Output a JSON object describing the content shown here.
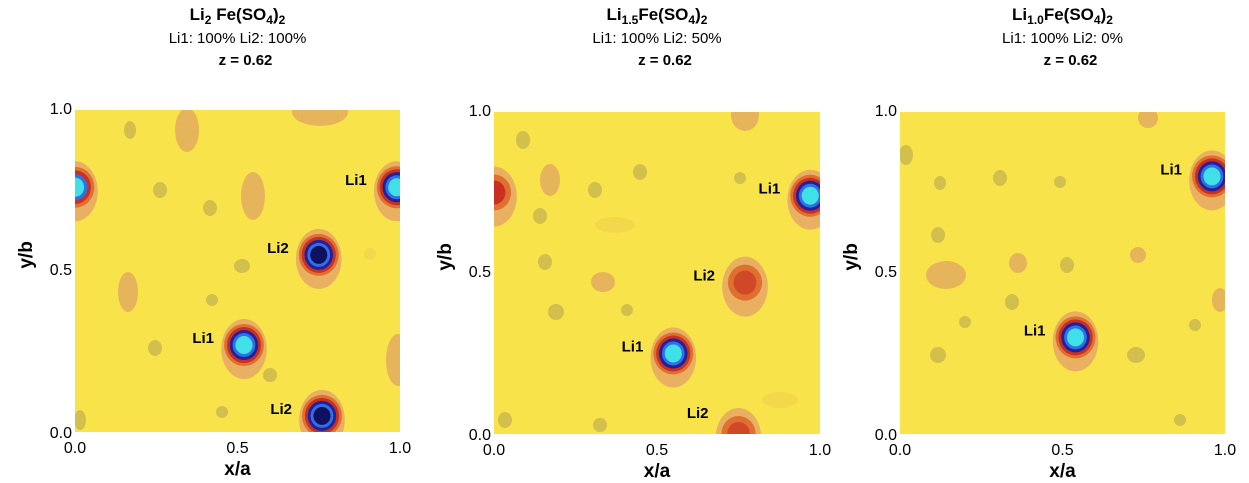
{
  "chart_data": [
    {
      "type": "contour",
      "title": [
        "Li",
        "2",
        " Fe(SO",
        "4",
        ")",
        "2"
      ],
      "subtitle": "Li1: 100% Li2: 100%",
      "annotation": "z = 0.62",
      "xlabel": "x/a",
      "ylabel": "y/b",
      "xlim": [
        0,
        1
      ],
      "ylim": [
        0,
        1
      ],
      "xticks": [
        {
          "value": 0,
          "label": "0.0"
        },
        0.5,
        {
          "value": 1,
          "label": "1.0"
        }
      ],
      "yticks": [
        {
          "value": 0,
          "label": "0.0"
        },
        0.5,
        {
          "value": 1,
          "label": "1.0"
        }
      ],
      "background": "#f8e44a",
      "sites": [
        {
          "label": "Li1",
          "x": 0.99,
          "y": 0.76,
          "colors": [
            "#e8b060",
            "#e07030",
            "#c83020",
            "#2020a0",
            "#3070e0",
            "#40e0e8"
          ]
        },
        {
          "label": null,
          "x": 0.0,
          "y": 0.76,
          "colors": [
            "#e8b060",
            "#e07030",
            "#c83020",
            "#3070e0",
            "#40e0e8"
          ]
        },
        {
          "label": "Li2",
          "x": 0.75,
          "y": 0.55,
          "colors": [
            "#e8b060",
            "#e07030",
            "#c83020",
            "#2020a0",
            "#3070e0",
            "#101060"
          ]
        },
        {
          "label": "Li1",
          "x": 0.52,
          "y": 0.27,
          "colors": [
            "#e8b060",
            "#e07030",
            "#c83020",
            "#2020a0",
            "#3070e0",
            "#40e0e8"
          ]
        },
        {
          "label": "Li2",
          "x": 0.76,
          "y": 0.05,
          "colors": [
            "#e8b060",
            "#e07030",
            "#c83020",
            "#2020a0",
            "#3070e0",
            "#101060"
          ]
        }
      ]
    },
    {
      "type": "contour",
      "title": [
        "Li",
        "1.5",
        "Fe(SO",
        "4",
        ")",
        "2"
      ],
      "subtitle": "Li1: 100% Li2: 50%",
      "annotation": "z = 0.62",
      "xlabel": "x/a",
      "ylabel": "y/b",
      "xlim": [
        0,
        1
      ],
      "ylim": [
        0,
        1
      ],
      "xticks": [
        {
          "value": 0,
          "label": "0.0"
        },
        0.5,
        {
          "value": 1,
          "label": "1.0"
        }
      ],
      "yticks": [
        {
          "value": 0,
          "label": "0.0"
        },
        0.5,
        {
          "value": 1,
          "label": "1.0"
        }
      ],
      "background": "#f8e44a",
      "sites": [
        {
          "label": "Li1",
          "x": 0.97,
          "y": 0.74,
          "colors": [
            "#e8b060",
            "#e07030",
            "#c83020",
            "#2020a0",
            "#3070e0",
            "#40e0e8"
          ]
        },
        {
          "label": null,
          "x": 0.0,
          "y": 0.75,
          "colors": [
            "#e8b060",
            "#e07030",
            "#c83020"
          ]
        },
        {
          "label": "Li2",
          "x": 0.77,
          "y": 0.47,
          "colors": [
            "#e8b060",
            "#e07030",
            "#d04828"
          ]
        },
        {
          "label": "Li1",
          "x": 0.55,
          "y": 0.25,
          "colors": [
            "#e8b060",
            "#e07030",
            "#c83020",
            "#2020a0",
            "#3070e0",
            "#40e0e8"
          ]
        },
        {
          "label": "Li2",
          "x": 0.75,
          "y": 0.0,
          "colors": [
            "#e8b060",
            "#e07030",
            "#d04828"
          ]
        }
      ]
    },
    {
      "type": "contour",
      "title": [
        "Li",
        "1.0",
        "Fe(SO",
        "4",
        ")",
        "2"
      ],
      "subtitle": "Li1: 100% Li2: 0%",
      "annotation": "z = 0.62",
      "xlabel": "x/a",
      "ylabel": "y/b",
      "xlim": [
        0,
        1
      ],
      "ylim": [
        0,
        1
      ],
      "xticks": [
        {
          "value": 0,
          "label": "0.0"
        },
        0.5,
        {
          "value": 1,
          "label": "1.0"
        }
      ],
      "yticks": [
        {
          "value": 0,
          "label": "0.0"
        },
        0.5,
        {
          "value": 1,
          "label": "1.0"
        }
      ],
      "background": "#f8e44a",
      "sites": [
        {
          "label": "Li1",
          "x": 0.96,
          "y": 0.8,
          "colors": [
            "#e8b060",
            "#e07030",
            "#c83020",
            "#2020a0",
            "#3070e0",
            "#40e0e8"
          ]
        },
        {
          "label": "Li1",
          "x": 0.54,
          "y": 0.3,
          "colors": [
            "#e8b060",
            "#e07030",
            "#c83020",
            "#2020a0",
            "#3070e0",
            "#40e0e8"
          ]
        }
      ]
    }
  ]
}
